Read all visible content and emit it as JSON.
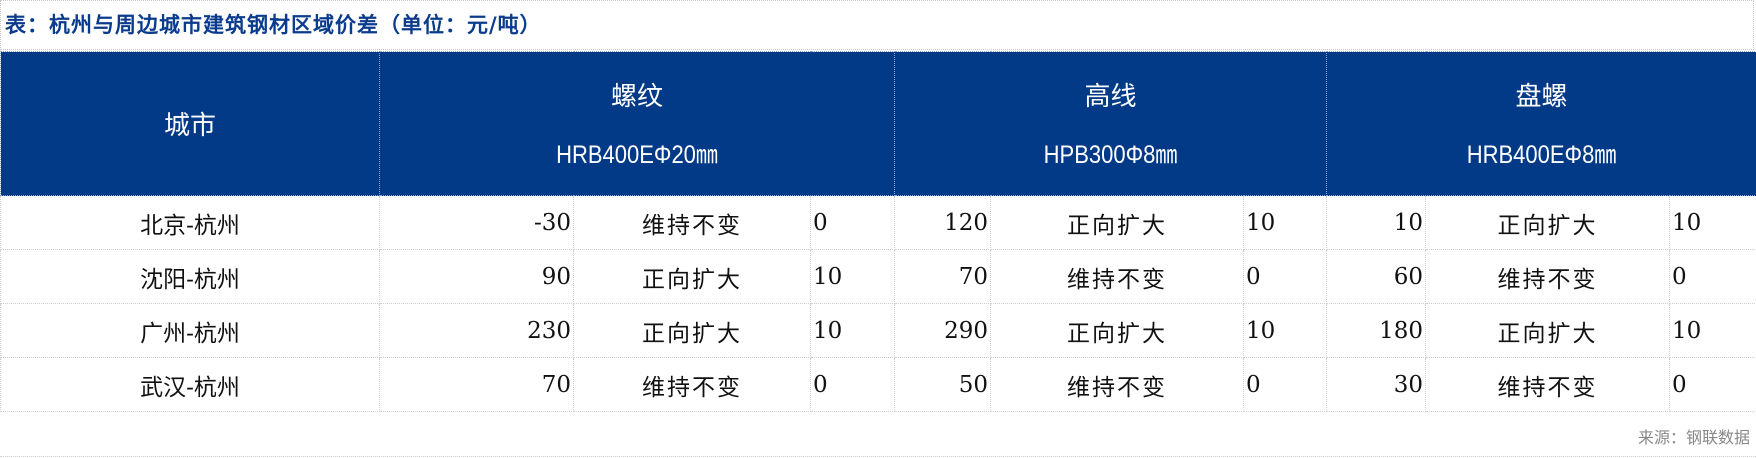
{
  "title": "表：杭州与周边城市建筑钢材区域价差（单位：元/吨）",
  "header": {
    "city": "城市",
    "groups": [
      {
        "name": "螺纹",
        "spec": "HRB400EΦ20㎜"
      },
      {
        "name": "高线",
        "spec": "HPB300Φ8㎜"
      },
      {
        "name": "盘螺",
        "spec": "HRB400EΦ8㎜"
      }
    ]
  },
  "rows": [
    {
      "city": "北京-杭州",
      "cells": [
        [
          "-30",
          "维持不变",
          "0"
        ],
        [
          "120",
          "正向扩大",
          "10"
        ],
        [
          "10",
          "正向扩大",
          "10"
        ]
      ]
    },
    {
      "city": "沈阳-杭州",
      "cells": [
        [
          "90",
          "正向扩大",
          "10"
        ],
        [
          "70",
          "维持不变",
          "0"
        ],
        [
          "60",
          "维持不变",
          "0"
        ]
      ]
    },
    {
      "city": "广州-杭州",
      "cells": [
        [
          "230",
          "正向扩大",
          "10"
        ],
        [
          "290",
          "正向扩大",
          "10"
        ],
        [
          "180",
          "正向扩大",
          "10"
        ]
      ]
    },
    {
      "city": "武汉-杭州",
      "cells": [
        [
          "70",
          "维持不变",
          "0"
        ],
        [
          "50",
          "维持不变",
          "0"
        ],
        [
          "30",
          "维持不变",
          "0"
        ]
      ]
    }
  ],
  "source": "来源：钢联数据",
  "colors": {
    "header_bg": "#023a87",
    "title": "#0b3b8c"
  }
}
